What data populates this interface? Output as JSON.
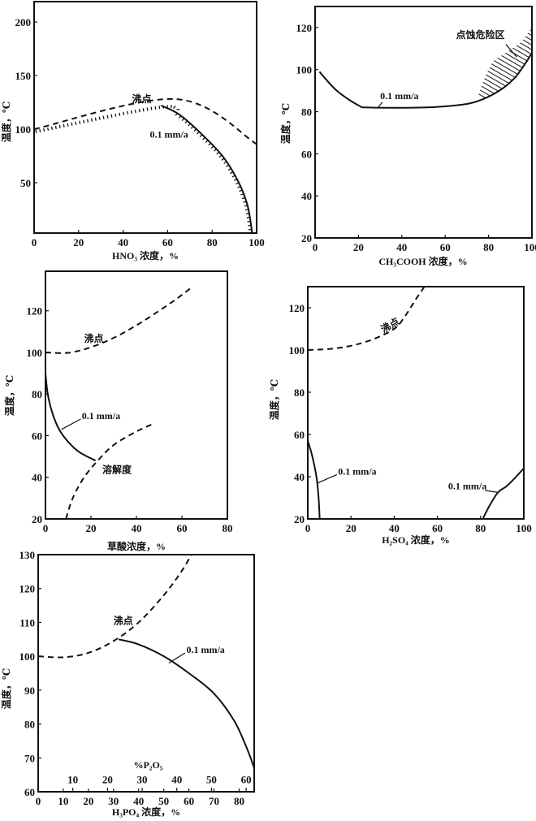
{
  "chart_data": [
    {
      "type": "line",
      "xlabel": "HNO₃ 浓度，%",
      "ylabel": "温度，℃",
      "xlim": [
        0,
        100
      ],
      "ylim": [
        3,
        219
      ],
      "xticks": [
        0,
        20,
        40,
        60,
        80,
        100
      ],
      "yticks": [
        50,
        100,
        150,
        200
      ],
      "series": [
        {
          "name": "沸点",
          "style": "dashed",
          "points": [
            [
              0,
              100
            ],
            [
              64,
              128
            ],
            [
              100,
              86
            ]
          ]
        },
        {
          "name": "0.1 mm/a",
          "style": "hatched",
          "solid_from": 57,
          "points": [
            [
              0,
              99
            ],
            [
              57,
              122
            ],
            [
              65,
              114
            ],
            [
              75,
              96
            ],
            [
              85,
              74
            ],
            [
              92,
              50
            ],
            [
              96,
              28
            ],
            [
              98,
              3
            ]
          ]
        }
      ],
      "annotations": [
        {
          "text": "沸点",
          "at": [
            44,
            125
          ]
        },
        {
          "text": "0.1 mm/a",
          "at": [
            52,
            92
          ]
        }
      ]
    },
    {
      "type": "line",
      "xlabel": "CH₃COOH 浓度，%",
      "ylabel": "温度，℃",
      "xlim": [
        0,
        100
      ],
      "ylim": [
        20,
        130
      ],
      "xticks": [
        0,
        20,
        40,
        60,
        80,
        100
      ],
      "yticks": [
        20,
        40,
        60,
        80,
        100,
        120
      ],
      "series": [
        {
          "name": "0.1 mm/a",
          "style": "solid",
          "points": [
            [
              2,
              99
            ],
            [
              10,
              90
            ],
            [
              20,
              83
            ],
            [
              25,
              82
            ],
            [
              50,
              82
            ],
            [
              65,
              83
            ],
            [
              75,
              85
            ],
            [
              85,
              90
            ],
            [
              92,
              96
            ],
            [
              97,
              103
            ],
            [
              100,
              108
            ]
          ]
        }
      ],
      "regions": [
        {
          "name": "点蚀危险区",
          "points": [
            [
              75,
              87
            ],
            [
              77,
              93
            ],
            [
              79,
              98
            ],
            [
              82,
              104
            ],
            [
              88,
              108
            ],
            [
              95,
              113
            ],
            [
              100,
              120
            ],
            [
              100,
              108
            ],
            [
              97,
              103
            ],
            [
              92,
              96
            ],
            [
              85,
              90
            ],
            [
              78,
              86
            ]
          ]
        }
      ],
      "annotations": [
        {
          "text": "0.1 mm/a",
          "at": [
            30,
            86
          ],
          "leader": [
            31,
            84.5,
            29,
            82
          ]
        },
        {
          "text": "点蚀危险区",
          "at": [
            65,
            115
          ],
          "leader": [
            88,
            112,
            93,
            106
          ]
        }
      ]
    },
    {
      "type": "line",
      "xlabel": "草酸浓度，%",
      "ylabel": "温度，℃",
      "xlim": [
        0,
        80
      ],
      "ylim": [
        20,
        139
      ],
      "xticks": [
        0,
        20,
        40,
        60,
        80
      ],
      "yticks": [
        20,
        40,
        60,
        80,
        100,
        120
      ],
      "series": [
        {
          "name": "沸点",
          "style": "dashed",
          "points": [
            [
              0,
              100
            ],
            [
              10,
              99.8
            ],
            [
              20,
              102.5
            ],
            [
              30,
              107
            ],
            [
              40,
              113
            ],
            [
              50,
              120
            ],
            [
              58,
              126
            ],
            [
              64,
              131
            ]
          ]
        },
        {
          "name": "0.1 mm/a",
          "style": "solid",
          "points": [
            [
              0,
              90
            ],
            [
              1,
              80
            ],
            [
              3,
              71
            ],
            [
              6,
              63
            ],
            [
              10,
              57
            ],
            [
              15,
              52
            ],
            [
              22,
              48
            ]
          ]
        },
        {
          "name": "溶解度",
          "style": "dashed",
          "points": [
            [
              9,
              20
            ],
            [
              12,
              30
            ],
            [
              17,
              40
            ],
            [
              23,
              48
            ],
            [
              30,
              55.5
            ],
            [
              40,
              62
            ],
            [
              48,
              66
            ]
          ]
        }
      ],
      "annotations": [
        {
          "text": "沸点",
          "at": [
            17,
            105
          ]
        },
        {
          "text": "0.1 mm/a",
          "at": [
            16,
            68
          ],
          "leader": [
            15.5,
            68,
            7,
            63
          ]
        },
        {
          "text": "溶解度",
          "at": [
            25,
            42
          ]
        }
      ]
    },
    {
      "type": "line",
      "xlabel": "H₂SO₄ 浓度，%",
      "ylabel": "温度，℃",
      "xlim": [
        0,
        100
      ],
      "ylim": [
        20,
        130
      ],
      "xticks": [
        0,
        20,
        40,
        60,
        80,
        100
      ],
      "yticks": [
        20,
        40,
        60,
        80,
        100,
        120
      ],
      "series": [
        {
          "name": "沸点",
          "style": "dashed",
          "points": [
            [
              0,
              100
            ],
            [
              10,
              100.5
            ],
            [
              20,
              102
            ],
            [
              30,
              105
            ],
            [
              40,
              110
            ],
            [
              45,
              116
            ],
            [
              50,
              124
            ],
            [
              54,
              130
            ]
          ]
        },
        {
          "name": "0.1 mm/a",
          "style": "solid",
          "points": [
            [
              0,
              57
            ],
            [
              2,
              50
            ],
            [
              4,
              40
            ],
            [
              5,
              30
            ],
            [
              5.5,
              20
            ]
          ]
        },
        {
          "name": "0.1 mm/a",
          "style": "solid",
          "points": [
            [
              81,
              20
            ],
            [
              84,
              26
            ],
            [
              88,
              32.5
            ],
            [
              92,
              35.5
            ],
            [
              96,
              39.5
            ],
            [
              100,
              44
            ]
          ]
        }
      ],
      "annotations": [
        {
          "text": "沸点",
          "at": [
            35,
            108
          ],
          "rotate": -30
        },
        {
          "text": "0.1 mm/a",
          "at": [
            14,
            41
          ],
          "leader": [
            13.5,
            41,
            4.5,
            37
          ]
        },
        {
          "text": "0.1 mm/a",
          "at": [
            65,
            34
          ],
          "leader": [
            82,
            33.5,
            88.5,
            32.5
          ]
        }
      ]
    },
    {
      "type": "line",
      "xlabel": "H₃PO₄ 浓度，%",
      "ylabel": "温度，℃",
      "xlim": [
        0,
        86
      ],
      "ylim": [
        60,
        130
      ],
      "xticks": [
        0,
        10,
        20,
        30,
        40,
        50,
        60,
        70,
        80
      ],
      "yticks": [
        60,
        70,
        80,
        90,
        100,
        110,
        120,
        130
      ],
      "secondary_x": {
        "label": "%P₂O₅",
        "ticks": [
          10,
          20,
          30,
          40,
          50,
          60
        ],
        "positions": [
          13.8,
          27.6,
          41.4,
          55.2,
          69.0,
          82.8
        ]
      },
      "series": [
        {
          "name": "沸点",
          "style": "dashed",
          "points": [
            [
              0,
              100
            ],
            [
              10,
              99.7
            ],
            [
              20,
              101
            ],
            [
              30,
              104.5
            ],
            [
              40,
              110
            ],
            [
              50,
              118
            ],
            [
              57,
              125
            ],
            [
              61,
              130
            ]
          ]
        },
        {
          "name": "0.1 mm/a",
          "style": "solid",
          "points": [
            [
              32,
              105
            ],
            [
              40,
              103.5
            ],
            [
              50,
              100
            ],
            [
              60,
              95
            ],
            [
              70,
              89
            ],
            [
              78,
              81
            ],
            [
              83,
              73
            ],
            [
              86,
              67
            ]
          ]
        }
      ],
      "annotations": [
        {
          "text": "沸点",
          "at": [
            30,
            109.5
          ]
        },
        {
          "text": "0.1 mm/a",
          "at": [
            59,
            101
          ],
          "leader": [
            58.5,
            101,
            52,
            98
          ]
        },
        {
          "text": "%P₂O₅",
          "at": [
            38,
            67
          ]
        }
      ]
    }
  ]
}
